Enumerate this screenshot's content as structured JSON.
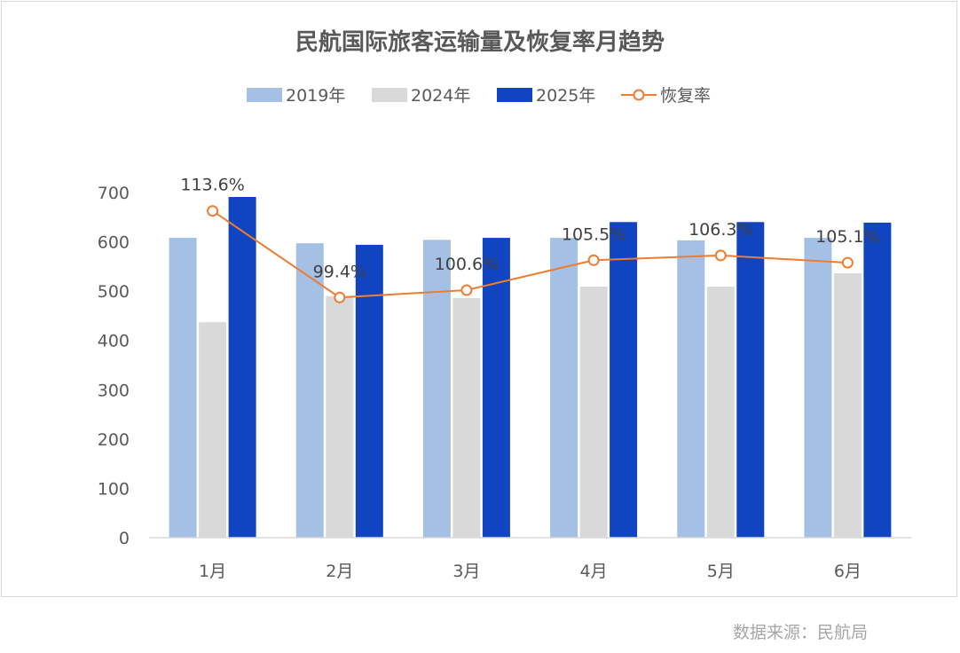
{
  "chart_data": {
    "type": "bar",
    "title": "民航国际旅客运输量及恢复率月趋势",
    "categories": [
      "1月",
      "2月",
      "3月",
      "4月",
      "5月",
      "6月"
    ],
    "series": [
      {
        "name": "2019年",
        "kind": "bar",
        "color": "#a5c0e5",
        "values": [
          608,
          597,
          604,
          608,
          603,
          608
        ]
      },
      {
        "name": "2024年",
        "kind": "bar",
        "color": "#d9d9d9",
        "values": [
          437,
          490,
          486,
          509,
          509,
          536
        ]
      },
      {
        "name": "2025年",
        "kind": "bar",
        "color": "#1044c0",
        "values": [
          691,
          594,
          608,
          640,
          640,
          639
        ]
      },
      {
        "name": "恢复率",
        "kind": "line",
        "color": "#ed7d31",
        "values": [
          113.6,
          99.4,
          100.6,
          105.5,
          106.3,
          105.1
        ]
      }
    ],
    "rate_labels": [
      "113.6%",
      "99.4%",
      "100.6%",
      "105.5%",
      "106.3%",
      "105.1%"
    ],
    "yticks": [
      "0",
      "100",
      "200",
      "300",
      "400",
      "500",
      "600",
      "700"
    ],
    "ylim": [
      0,
      700
    ],
    "rate_ylim": [
      60,
      130
    ],
    "xlabel": "",
    "ylabel": "",
    "grid": false,
    "legend_position": "top"
  },
  "source_note": "数据来源：民航局"
}
